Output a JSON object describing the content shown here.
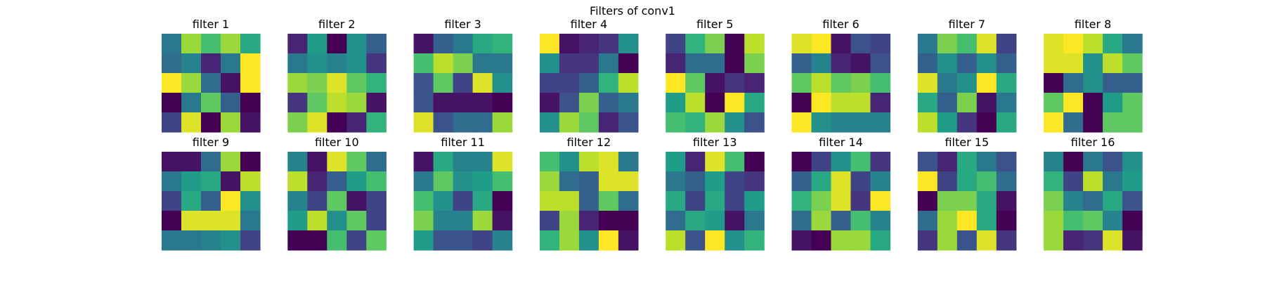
{
  "chart_data": {
    "type": "heatmap",
    "title": "Filters of conv1",
    "colormap": "viridis",
    "value_range": [
      0,
      1
    ],
    "grid": false,
    "axes_visible": false,
    "rows": 2,
    "cols": 8,
    "filters": [
      {
        "title": "filter 1",
        "values": [
          [
            0.4,
            0.85,
            0.7,
            0.85,
            0.6
          ],
          [
            0.35,
            0.45,
            0.1,
            0.4,
            1.0
          ],
          [
            1.0,
            0.85,
            0.35,
            0.05,
            1.0
          ],
          [
            0.0,
            0.4,
            0.75,
            0.3,
            0.0
          ],
          [
            0.2,
            0.95,
            0.0,
            0.85,
            0.05
          ]
        ]
      },
      {
        "title": "filter 2",
        "values": [
          [
            0.1,
            0.55,
            0.0,
            0.5,
            0.3
          ],
          [
            0.4,
            0.5,
            0.45,
            0.5,
            0.15
          ],
          [
            0.85,
            0.8,
            0.95,
            0.75,
            0.65
          ],
          [
            0.15,
            0.75,
            0.9,
            0.85,
            0.05
          ],
          [
            0.8,
            0.95,
            0.0,
            0.1,
            0.65
          ]
        ]
      },
      {
        "title": "filter 3",
        "values": [
          [
            0.05,
            0.3,
            0.4,
            0.6,
            0.65
          ],
          [
            0.7,
            0.9,
            0.8,
            0.4,
            0.4
          ],
          [
            0.25,
            0.75,
            0.2,
            0.95,
            0.5
          ],
          [
            0.25,
            0.05,
            0.05,
            0.05,
            0.0
          ],
          [
            0.95,
            0.25,
            0.35,
            0.35,
            0.85
          ]
        ]
      },
      {
        "title": "filter 4",
        "values": [
          [
            1.0,
            0.05,
            0.1,
            0.15,
            0.5
          ],
          [
            0.5,
            0.15,
            0.15,
            0.4,
            0.0
          ],
          [
            0.2,
            0.2,
            0.3,
            0.65,
            0.9
          ],
          [
            0.05,
            0.25,
            0.8,
            0.3,
            0.4
          ],
          [
            0.5,
            0.85,
            0.75,
            0.1,
            0.25
          ]
        ]
      },
      {
        "title": "filter 5",
        "values": [
          [
            0.2,
            0.65,
            0.8,
            0.0,
            0.9
          ],
          [
            0.1,
            0.35,
            0.35,
            0.0,
            0.8
          ],
          [
            1.0,
            0.75,
            0.05,
            0.15,
            0.1
          ],
          [
            0.55,
            0.9,
            0.0,
            1.0,
            0.6
          ],
          [
            0.7,
            0.65,
            0.85,
            0.5,
            0.25
          ]
        ]
      },
      {
        "title": "filter 6",
        "values": [
          [
            0.95,
            1.0,
            0.05,
            0.25,
            0.2
          ],
          [
            0.3,
            0.45,
            0.1,
            0.05,
            0.25
          ],
          [
            0.75,
            0.9,
            0.75,
            0.8,
            0.7
          ],
          [
            0.0,
            1.0,
            0.9,
            0.9,
            0.1
          ],
          [
            1.0,
            0.5,
            0.45,
            0.45,
            0.45
          ]
        ]
      },
      {
        "title": "filter 7",
        "values": [
          [
            0.4,
            0.8,
            0.7,
            0.95,
            0.2
          ],
          [
            0.3,
            0.5,
            0.3,
            0.5,
            0.3
          ],
          [
            0.95,
            0.4,
            0.5,
            1.0,
            0.6
          ],
          [
            0.6,
            0.3,
            0.8,
            0.05,
            0.4
          ],
          [
            0.9,
            0.55,
            0.15,
            0.0,
            0.6
          ]
        ]
      },
      {
        "title": "filter 8",
        "values": [
          [
            0.95,
            1.0,
            0.9,
            0.6,
            0.4
          ],
          [
            0.95,
            0.95,
            0.5,
            0.9,
            0.75
          ],
          [
            0.0,
            0.35,
            0.5,
            0.3,
            0.3
          ],
          [
            0.75,
            1.0,
            0.0,
            0.55,
            0.75
          ],
          [
            1.0,
            0.35,
            0.0,
            0.75,
            0.75
          ]
        ]
      },
      {
        "title": "filter 9",
        "values": [
          [
            0.05,
            0.05,
            0.35,
            0.85,
            0.0
          ],
          [
            0.4,
            0.55,
            0.6,
            0.05,
            0.9
          ],
          [
            0.2,
            0.6,
            0.3,
            1.0,
            0.5
          ],
          [
            0.0,
            0.95,
            0.95,
            0.95,
            0.4
          ],
          [
            0.4,
            0.4,
            0.45,
            0.5,
            0.2
          ]
        ]
      },
      {
        "title": "filter 10",
        "values": [
          [
            0.45,
            0.05,
            0.95,
            0.75,
            0.35
          ],
          [
            0.9,
            0.1,
            0.3,
            0.55,
            0.7
          ],
          [
            0.45,
            0.2,
            0.75,
            0.05,
            0.2
          ],
          [
            0.55,
            0.9,
            0.5,
            0.75,
            0.2
          ],
          [
            0.0,
            0.0,
            0.7,
            0.2,
            0.75
          ]
        ]
      },
      {
        "title": "filter 11",
        "values": [
          [
            0.05,
            0.6,
            0.45,
            0.45,
            0.95
          ],
          [
            0.4,
            0.75,
            0.5,
            0.55,
            0.7
          ],
          [
            0.7,
            0.5,
            0.2,
            0.6,
            0.0
          ],
          [
            0.8,
            0.45,
            0.45,
            0.85,
            0.05
          ],
          [
            0.55,
            0.25,
            0.25,
            0.2,
            0.45
          ]
        ]
      },
      {
        "title": "filter 12",
        "values": [
          [
            0.7,
            0.5,
            0.9,
            0.95,
            0.4
          ],
          [
            0.85,
            0.35,
            0.3,
            0.95,
            0.95
          ],
          [
            0.9,
            0.9,
            0.3,
            0.75,
            0.35
          ],
          [
            0.2,
            0.85,
            0.1,
            0.0,
            0.0
          ],
          [
            0.65,
            0.85,
            0.5,
            1.0,
            0.05
          ]
        ]
      },
      {
        "title": "filter 13",
        "values": [
          [
            0.55,
            0.1,
            0.95,
            0.7,
            0.0
          ],
          [
            0.4,
            0.3,
            0.55,
            0.2,
            0.15
          ],
          [
            0.6,
            0.2,
            0.6,
            0.2,
            0.55
          ],
          [
            0.35,
            0.6,
            0.55,
            0.05,
            0.4
          ],
          [
            0.9,
            0.25,
            1.0,
            0.5,
            0.65
          ]
        ]
      },
      {
        "title": "filter 14",
        "values": [
          [
            0.0,
            0.2,
            0.5,
            0.7,
            0.15
          ],
          [
            0.3,
            0.6,
            0.95,
            0.2,
            0.45
          ],
          [
            0.65,
            0.8,
            0.95,
            0.15,
            1.0
          ],
          [
            0.35,
            0.85,
            0.3,
            0.7,
            0.45
          ],
          [
            0.05,
            0.0,
            0.85,
            0.85,
            0.6
          ]
        ]
      },
      {
        "title": "filter 15",
        "values": [
          [
            0.25,
            0.1,
            0.6,
            0.4,
            0.25
          ],
          [
            1.0,
            0.2,
            0.6,
            0.7,
            0.35
          ],
          [
            0.0,
            0.8,
            0.8,
            0.6,
            0.05
          ],
          [
            0.35,
            0.85,
            1.0,
            0.6,
            0.0
          ],
          [
            0.15,
            0.85,
            0.25,
            0.95,
            0.15
          ]
        ]
      },
      {
        "title": "filter 16",
        "values": [
          [
            0.45,
            0.0,
            0.4,
            0.25,
            0.5
          ],
          [
            0.65,
            0.2,
            0.9,
            0.4,
            0.55
          ],
          [
            0.8,
            0.45,
            0.35,
            0.6,
            0.25
          ],
          [
            0.85,
            0.7,
            0.75,
            0.45,
            0.0
          ],
          [
            0.85,
            0.1,
            0.15,
            0.95,
            0.05
          ]
        ]
      }
    ]
  }
}
